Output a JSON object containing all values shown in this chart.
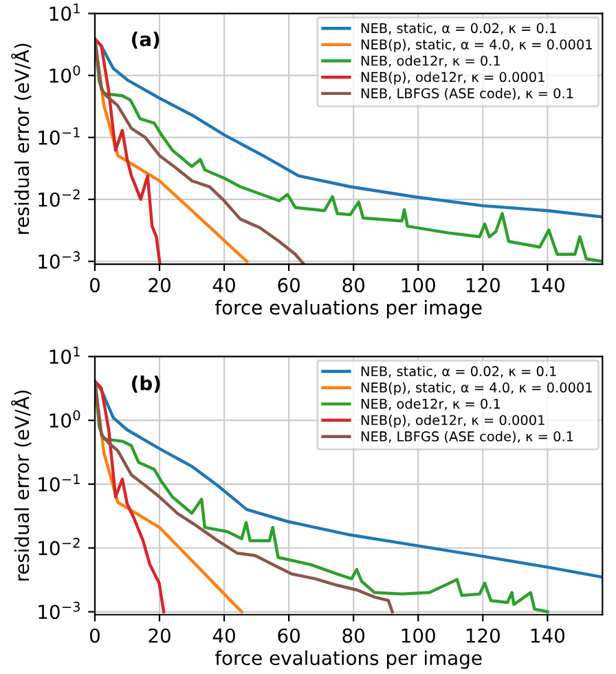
{
  "chart_data": [
    {
      "type": "line",
      "xlabel": "force evaluations per image",
      "ylabel": "residual error (eV/Å)",
      "annotations": [
        "(a)"
      ],
      "log": "y",
      "grid": true,
      "legend": "top right",
      "line_style": "solid",
      "marker": "none",
      "xlim": [
        0,
        157
      ],
      "xticks": [
        0,
        20,
        40,
        60,
        80,
        100,
        120,
        140
      ],
      "ylim": [
        0.0009,
        10
      ],
      "yticks": [
        {
          "value": 0.001,
          "label": "10$^{−3}$"
        },
        {
          "value": 0.01,
          "label": "10$^{−2}$"
        },
        {
          "value": 0.1,
          "label": "10$^{−1}$"
        },
        {
          "value": 1,
          "label": "10$^{0}$"
        },
        {
          "value": 10,
          "label": "10$^{1}$"
        }
      ],
      "series": [
        {
          "name": "NEB, static, α = 0.02, κ = 0.1",
          "color": "#1f77b4",
          "x": [
            0,
            2,
            5.7,
            10,
            20,
            30,
            40,
            52,
            63,
            79,
            99,
            120,
            140,
            157
          ],
          "values": [
            3.9,
            3.0,
            1.3,
            0.85,
            0.43,
            0.23,
            0.11,
            0.051,
            0.024,
            0.016,
            0.011,
            0.0079,
            0.0066,
            0.0052
          ]
        },
        {
          "name": "NEB(p), static, α = 4.0, κ = 0.0001",
          "color": "#ff7f0e",
          "x": [
            0,
            2.8,
            7.1,
            20,
            47
          ],
          "values": [
            3.9,
            0.33,
            0.051,
            0.02,
            0.001
          ]
        },
        {
          "name": "NEB, ode12r, κ = 0.1",
          "color": "#2ca02c",
          "x": [
            0,
            1.4,
            2.8,
            8.5,
            11,
            14,
            18.4,
            20.6,
            24,
            30,
            32.6,
            34,
            40,
            45,
            57,
            59.6,
            62,
            71,
            73.5,
            75,
            79,
            81.6,
            83,
            95,
            95.7,
            96.7,
            109,
            119,
            120.6,
            122,
            124,
            126,
            128,
            137.6,
            140.4,
            143,
            148.5,
            150,
            152,
            157
          ],
          "values": [
            3.9,
            0.78,
            0.51,
            0.47,
            0.4,
            0.2,
            0.17,
            0.11,
            0.062,
            0.034,
            0.044,
            0.03,
            0.022,
            0.016,
            0.0095,
            0.012,
            0.0074,
            0.0066,
            0.011,
            0.0059,
            0.0057,
            0.0091,
            0.005,
            0.0045,
            0.0068,
            0.0037,
            0.0029,
            0.0025,
            0.004,
            0.0025,
            0.003,
            0.0059,
            0.0021,
            0.0017,
            0.0032,
            0.0013,
            0.0013,
            0.0025,
            0.0011,
            0.001
          ]
        },
        {
          "name": "NEB(p), ode12r, κ = 0.0001",
          "color": "#d62728",
          "x": [
            0,
            2,
            4.3,
            6.4,
            8.5,
            10,
            11.3,
            14.2,
            16.3,
            17.7,
            19,
            20.1
          ],
          "values": [
            3.9,
            3.0,
            0.55,
            0.062,
            0.13,
            0.044,
            0.024,
            0.01,
            0.024,
            0.0037,
            0.0025,
            0.00092
          ]
        },
        {
          "name": "NEB, LBFGS (ASE code), κ = 0.1",
          "color": "#8c564b",
          "x": [
            0,
            2,
            3.5,
            7,
            11.3,
            15.6,
            20,
            25.5,
            30,
            35.5,
            40,
            45,
            51,
            57,
            62,
            64.5
          ],
          "values": [
            3.9,
            0.6,
            0.47,
            0.33,
            0.14,
            0.1,
            0.051,
            0.031,
            0.02,
            0.016,
            0.0095,
            0.0048,
            0.0035,
            0.0021,
            0.0013,
            0.00092
          ]
        }
      ]
    },
    {
      "type": "line",
      "xlabel": "force evaluations per image",
      "ylabel": "residual error (eV/Å)",
      "annotations": [
        "(b)"
      ],
      "log": "y",
      "grid": true,
      "legend": "top right",
      "line_style": "solid",
      "marker": "none",
      "xlim": [
        0,
        157
      ],
      "xticks": [
        0,
        20,
        40,
        60,
        80,
        100,
        120,
        140
      ],
      "ylim": [
        0.0009,
        10
      ],
      "yticks": [
        {
          "value": 0.001,
          "label": "10$^{−3}$"
        },
        {
          "value": 0.01,
          "label": "10$^{−2}$"
        },
        {
          "value": 0.1,
          "label": "10$^{−1}$"
        },
        {
          "value": 1,
          "label": "10$^{0}$"
        },
        {
          "value": 10,
          "label": "10$^{1}$"
        }
      ],
      "series": [
        {
          "name": "NEB, static, α = 0.02, κ = 0.1",
          "color": "#1f77b4",
          "x": [
            0,
            2,
            5.7,
            10,
            20,
            30,
            38,
            47,
            59.6,
            79,
            99,
            120,
            140,
            157
          ],
          "values": [
            4.1,
            3.0,
            1.1,
            0.71,
            0.36,
            0.19,
            0.095,
            0.04,
            0.026,
            0.016,
            0.011,
            0.0074,
            0.005,
            0.0035
          ]
        },
        {
          "name": "NEB(p), static, α = 4.0, κ = 0.0001",
          "color": "#ff7f0e",
          "x": [
            0,
            2.8,
            7.1,
            20,
            45.4
          ],
          "values": [
            4.1,
            0.31,
            0.052,
            0.021,
            0.001
          ]
        },
        {
          "name": "NEB, ode12r, κ = 0.1",
          "color": "#2ca02c",
          "x": [
            0,
            1.4,
            2.8,
            8.5,
            11.3,
            13.5,
            18.4,
            20.6,
            24,
            30,
            33,
            34,
            41,
            45.4,
            46.8,
            48,
            54,
            55,
            56.7,
            66.7,
            75,
            79.4,
            81,
            82.5,
            86.5,
            95,
            103.5,
            112,
            113.5,
            119,
            120.6,
            122.5,
            127.6,
            129,
            129.6,
            134.8,
            136,
            140
          ],
          "values": [
            4.1,
            0.78,
            0.51,
            0.47,
            0.4,
            0.22,
            0.17,
            0.11,
            0.063,
            0.035,
            0.058,
            0.021,
            0.018,
            0.014,
            0.025,
            0.013,
            0.013,
            0.021,
            0.0071,
            0.0055,
            0.0039,
            0.0033,
            0.0046,
            0.003,
            0.002,
            0.0019,
            0.002,
            0.0032,
            0.0018,
            0.0019,
            0.0028,
            0.0015,
            0.0014,
            0.002,
            0.0013,
            0.002,
            0.0011,
            0.001
          ]
        },
        {
          "name": "NEB(p), ode12r, κ = 0.0001",
          "color": "#d62728",
          "x": [
            0,
            2,
            4.3,
            6.4,
            8.5,
            10,
            12,
            14.9,
            17,
            19.9,
            21.3
          ],
          "values": [
            4.1,
            3.2,
            0.71,
            0.063,
            0.12,
            0.049,
            0.03,
            0.013,
            0.0055,
            0.0028,
            0.001
          ]
        },
        {
          "name": "NEB, LBFGS (ASE code), κ = 0.1",
          "color": "#8c564b",
          "x": [
            0,
            2,
            4.3,
            7,
            11.3,
            15.6,
            20,
            25.5,
            31,
            38,
            44,
            49.6,
            55,
            61,
            68,
            75,
            81,
            86.5,
            90.8,
            92
          ],
          "values": [
            4.1,
            0.6,
            0.44,
            0.34,
            0.14,
            0.095,
            0.063,
            0.035,
            0.023,
            0.013,
            0.0083,
            0.0076,
            0.0055,
            0.0039,
            0.0033,
            0.0026,
            0.0022,
            0.0017,
            0.0015,
            0.001
          ]
        }
      ]
    }
  ]
}
